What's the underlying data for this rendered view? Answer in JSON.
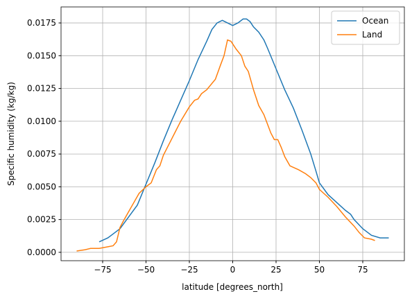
{
  "chart_data": {
    "type": "line",
    "xlabel": "latitude [degrees_north]",
    "ylabel": "Specific humidity (kg/kg)",
    "xlim": [
      -99,
      99
    ],
    "ylim": [
      -0.00064,
      0.01872
    ],
    "xticks": [
      {
        "value": -75,
        "label": "−75"
      },
      {
        "value": -50,
        "label": "−50"
      },
      {
        "value": -25,
        "label": "−25"
      },
      0,
      25,
      50,
      75
    ],
    "yticks": [
      {
        "value": 0,
        "label": "0.0000"
      },
      {
        "value": 0.0025,
        "label": "0.0025"
      },
      {
        "value": 0.005,
        "label": "0.0050"
      },
      {
        "value": 0.0075,
        "label": "0.0075"
      },
      {
        "value": 0.01,
        "label": "0.0100"
      },
      {
        "value": 0.0125,
        "label": "0.0125"
      },
      {
        "value": 0.015,
        "label": "0.0150"
      },
      {
        "value": 0.0175,
        "label": "0.0175"
      }
    ],
    "grid": true,
    "legend": "upper right",
    "series": [
      {
        "name": "Ocean",
        "color": "#1f77b4",
        "x": [
          -77,
          -72,
          -68,
          -65,
          -60,
          -55,
          -50,
          -45,
          -40,
          -35,
          -30,
          -25,
          -20,
          -15,
          -12,
          -9,
          -6,
          -3,
          0,
          3,
          6,
          8,
          10,
          12,
          15,
          18,
          20,
          25,
          30,
          35,
          40,
          45,
          48,
          50,
          55,
          60,
          65,
          68,
          70,
          75,
          80,
          85,
          90
        ],
        "values": [
          0.0008,
          0.0011,
          0.0015,
          0.0018,
          0.0027,
          0.0036,
          0.0052,
          0.0068,
          0.0085,
          0.0101,
          0.0116,
          0.0131,
          0.0147,
          0.0161,
          0.017,
          0.0175,
          0.0177,
          0.0175,
          0.0173,
          0.0175,
          0.0178,
          0.0178,
          0.0176,
          0.0172,
          0.0168,
          0.0162,
          0.0156,
          0.014,
          0.0124,
          0.011,
          0.0093,
          0.0075,
          0.0062,
          0.0053,
          0.0044,
          0.0038,
          0.0032,
          0.0029,
          0.0025,
          0.0018,
          0.0013,
          0.0011,
          0.0011
        ]
      },
      {
        "name": "Land",
        "color": "#ff7f0e",
        "x": [
          -90,
          -85,
          -82,
          -77,
          -73,
          -69,
          -67,
          -65,
          -63,
          -60,
          -57,
          -54,
          -50,
          -47,
          -44,
          -42,
          -40,
          -35,
          -30,
          -25,
          -22,
          -20,
          -18,
          -15,
          -10,
          -7,
          -5,
          -3,
          -1,
          2,
          5,
          7,
          9,
          12,
          15,
          18,
          20,
          22,
          24,
          26,
          28,
          30,
          33,
          38,
          42,
          45,
          48,
          50,
          55,
          60,
          65,
          70,
          73,
          76,
          80,
          82
        ],
        "values": [
          0.0001,
          0.0002,
          0.0003,
          0.0003,
          0.0004,
          0.0005,
          0.0008,
          0.0019,
          0.0024,
          0.0031,
          0.0038,
          0.0045,
          0.005,
          0.0053,
          0.0063,
          0.0066,
          0.0074,
          0.0087,
          0.01,
          0.0111,
          0.0116,
          0.0117,
          0.0121,
          0.0124,
          0.0132,
          0.0143,
          0.015,
          0.0162,
          0.0161,
          0.0155,
          0.015,
          0.0142,
          0.0138,
          0.0124,
          0.0112,
          0.0105,
          0.0098,
          0.0091,
          0.0086,
          0.0086,
          0.008,
          0.0073,
          0.0066,
          0.0063,
          0.006,
          0.0057,
          0.0053,
          0.0048,
          0.0042,
          0.0035,
          0.0027,
          0.002,
          0.0015,
          0.0011,
          0.001,
          0.0009
        ]
      }
    ]
  }
}
